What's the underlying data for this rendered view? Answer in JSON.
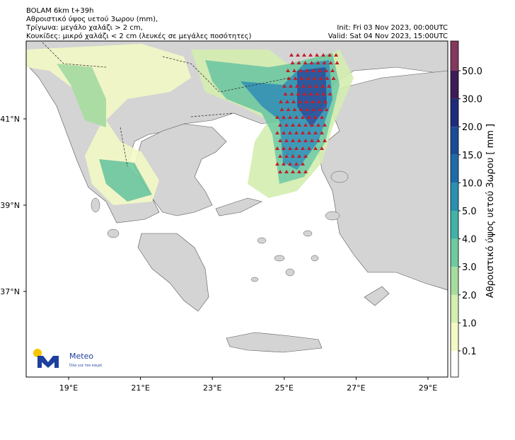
{
  "header": {
    "lines": [
      "BOLAM 6km t+39h",
      "Αθροιστικό ύψος υετού 3ωρου (mm),",
      "Τρίγωνα: μεγάλο χαλάζι > 2 cm,",
      "Κουκίδες: μικρό χαλάζι < 2 cm (λευκές σε μεγάλες ποσότητες)"
    ],
    "init": "Init: Fri 03 Nov 2023, 00:00UTC",
    "valid": "Valid: Sat 04 Nov 2023, 15:00UTC"
  },
  "map": {
    "lat_labels": [
      "41°N",
      "39°N",
      "37°N"
    ],
    "lon_labels": [
      "19°E",
      "21°E",
      "23°E",
      "25°E",
      "27°E",
      "29°E"
    ]
  },
  "colorbar": {
    "title": "Αθροιστικό ύψος υετού 3ωρου [ mm ]",
    "levels": [
      "0.1",
      "1.0",
      "2.0",
      "3.0",
      "4.0",
      "5.0",
      "10.0",
      "15.0",
      "20.0",
      "30.0",
      "50.0"
    ],
    "colors": [
      "#ffffff",
      "#f4f9c6",
      "#d4eeb0",
      "#a6dd9e",
      "#6fca9f",
      "#42b2a6",
      "#2b90b0",
      "#1f6ba8",
      "#1b4b97",
      "#1d2b7d",
      "#3d1c58",
      "#84385e"
    ]
  },
  "logo": {
    "name": "Meteo",
    "tagline": "Όλα για τον καιρό"
  }
}
